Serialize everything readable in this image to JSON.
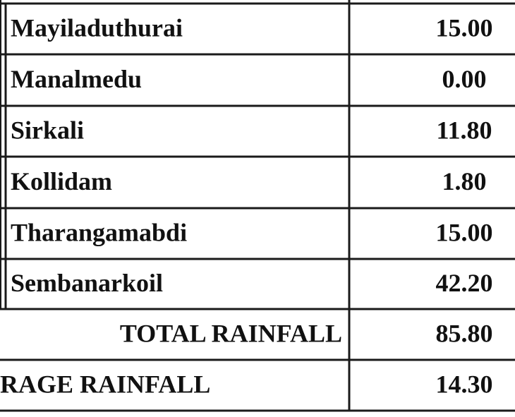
{
  "table": {
    "rows": [
      [
        "Mayiladuthurai",
        "15.00"
      ],
      [
        "Manalmedu",
        "0.00"
      ],
      [
        "Sirkali",
        "11.80"
      ],
      [
        "Kollidam",
        "1.80"
      ],
      [
        "Tharangamabdi",
        "15.00"
      ],
      [
        "Sembanarkoil",
        "42.20"
      ]
    ],
    "total": [
      "TOTAL RAINFALL",
      "85.80"
    ],
    "average": [
      "RAGE RAINFALL",
      "14.30"
    ]
  }
}
